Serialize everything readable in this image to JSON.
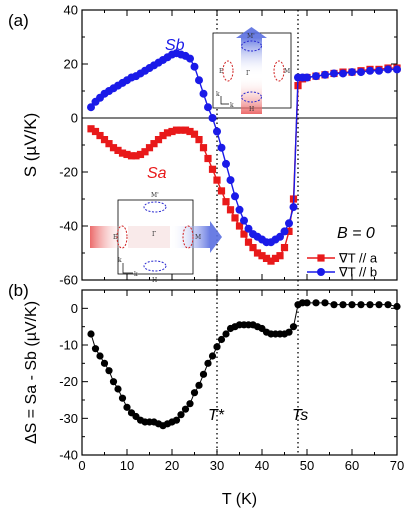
{
  "chart_data": [
    {
      "panel_label": "(a)",
      "type": "line",
      "ylabel": "S (µV/K)",
      "ylim": [
        -60,
        40
      ],
      "yticks": [
        -60,
        -40,
        -20,
        0,
        20,
        40
      ],
      "xlim": [
        0,
        70
      ],
      "annotation": "B = 0",
      "series": [
        {
          "name": "∇T // a",
          "curve_label": "Sa",
          "color": "#e8191a",
          "marker": "square",
          "x": [
            2,
            3,
            4,
            5,
            6,
            7,
            8,
            9,
            10,
            11,
            12,
            13,
            14,
            15,
            16,
            17,
            18,
            19,
            20,
            21,
            22,
            23,
            24,
            25,
            26,
            27,
            28,
            29,
            30,
            31,
            32,
            33,
            34,
            35,
            36,
            37,
            38,
            39,
            40,
            41,
            42,
            43,
            44,
            45,
            46,
            47,
            48,
            49,
            50,
            52,
            54,
            56,
            58,
            60,
            62,
            64,
            66,
            68,
            70
          ],
          "y": [
            -4,
            -5,
            -6.5,
            -8,
            -9.5,
            -11,
            -12,
            -13,
            -13.5,
            -14,
            -14,
            -13.5,
            -12.5,
            -11,
            -9.5,
            -8,
            -6.5,
            -5.5,
            -5,
            -4.5,
            -4.5,
            -4.5,
            -5,
            -6,
            -8,
            -11,
            -15,
            -19,
            -23,
            -27,
            -31,
            -34,
            -37,
            -40,
            -43,
            -46,
            -48,
            -50,
            -51,
            -52,
            -53,
            -52,
            -51,
            -48,
            -42,
            -30,
            12,
            14.5,
            15,
            15.5,
            16,
            16.5,
            17,
            17,
            17.5,
            18,
            18,
            18.5,
            18.5
          ]
        },
        {
          "name": "∇T // b",
          "curve_label": "Sb",
          "color": "#1a1ae8",
          "marker": "circle",
          "x": [
            2,
            3,
            4,
            5,
            6,
            7,
            8,
            9,
            10,
            11,
            12,
            13,
            14,
            15,
            16,
            17,
            18,
            19,
            20,
            21,
            22,
            23,
            24,
            25,
            26,
            27,
            28,
            29,
            30,
            31,
            32,
            33,
            34,
            35,
            36,
            37,
            38,
            39,
            40,
            41,
            42,
            43,
            44,
            45,
            46,
            47,
            48,
            49,
            50,
            52,
            54,
            56,
            58,
            60,
            62,
            64,
            66,
            68,
            70
          ],
          "y": [
            4,
            6,
            7.5,
            9,
            10,
            11,
            12,
            13,
            14,
            15,
            15.5,
            16.5,
            17.5,
            18.5,
            19.5,
            20.5,
            21.5,
            22.5,
            23.5,
            24,
            23.5,
            23,
            22,
            19,
            14,
            9,
            4,
            0,
            -5,
            -11,
            -17,
            -23,
            -29,
            -34,
            -38,
            -41,
            -43,
            -44,
            -45,
            -46,
            -46,
            -45,
            -44,
            -42,
            -39,
            -33,
            15,
            15,
            15,
            15.5,
            16,
            16.5,
            16.5,
            17,
            17,
            17.5,
            17.5,
            18,
            18
          ]
        }
      ]
    },
    {
      "panel_label": "(b)",
      "type": "scatter",
      "ylabel": "ΔS = Sa - Sb (µV/K)",
      "xlabel": "T (K)",
      "xlim": [
        0,
        70
      ],
      "xticks": [
        0,
        10,
        20,
        30,
        40,
        50,
        60,
        70
      ],
      "ylim": [
        -40,
        5
      ],
      "yticks": [
        -40,
        -30,
        -20,
        -10,
        0
      ],
      "vertical_lines": [
        {
          "x": 30,
          "label": "T*"
        },
        {
          "x": 48,
          "label": "Ts"
        }
      ],
      "series": [
        {
          "color": "#000000",
          "marker": "circle",
          "x": [
            2,
            3,
            4,
            5,
            6,
            7,
            8,
            9,
            10,
            11,
            12,
            13,
            14,
            15,
            16,
            17,
            18,
            19,
            20,
            21,
            22,
            23,
            24,
            25,
            26,
            27,
            28,
            29,
            30,
            31,
            32,
            33,
            34,
            35,
            36,
            37,
            38,
            39,
            40,
            41,
            42,
            43,
            44,
            45,
            46,
            47,
            48,
            49,
            50,
            52,
            54,
            56,
            58,
            60,
            62,
            64,
            66,
            68,
            70
          ],
          "y": [
            -7,
            -11,
            -13,
            -15,
            -17,
            -20,
            -22,
            -24.5,
            -27,
            -28.5,
            -29.5,
            -30.5,
            -31,
            -31,
            -31,
            -31.5,
            -32,
            -31.5,
            -31,
            -30.5,
            -29,
            -27.5,
            -26,
            -23,
            -21,
            -18,
            -15,
            -13,
            -10.5,
            -8.5,
            -7,
            -5.5,
            -5,
            -4.5,
            -4.5,
            -4.5,
            -4.5,
            -5,
            -5.5,
            -6.5,
            -7,
            -7,
            -7,
            -7,
            -6.5,
            -5,
            1,
            1.5,
            1.5,
            1.5,
            1.5,
            1,
            1,
            1,
            1,
            1,
            1,
            1,
            0.5
          ]
        }
      ]
    }
  ]
}
